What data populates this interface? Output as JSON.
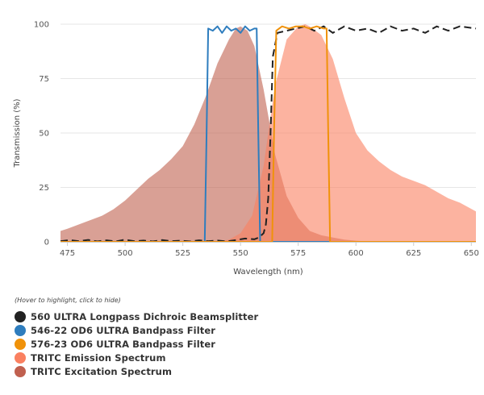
{
  "chart_data": {
    "type": "area",
    "xlabel": "Wavelength (nm)",
    "ylabel": "Transmission (%)",
    "xlim": [
      472,
      652
    ],
    "ylim": [
      0,
      100
    ],
    "x_ticks": [
      475,
      500,
      525,
      550,
      575,
      600,
      625,
      650
    ],
    "y_ticks": [
      0,
      25,
      50,
      75,
      100
    ],
    "grid": "horizontal",
    "legend_hint": "(Hover to highlight, click to hide)",
    "series": [
      {
        "name": "TRITC Excitation Spectrum",
        "style": "area",
        "color": "#c0604f",
        "x": [
          472,
          475,
          480,
          485,
          490,
          495,
          500,
          505,
          510,
          515,
          520,
          525,
          530,
          535,
          540,
          545,
          548,
          550,
          553,
          556,
          560,
          565,
          570,
          575,
          580,
          585,
          590,
          595,
          600,
          605,
          610
        ],
        "y": [
          5,
          6,
          8,
          10,
          12,
          15,
          19,
          24,
          29,
          33,
          38,
          44,
          54,
          67,
          82,
          93,
          98,
          99,
          97,
          90,
          70,
          40,
          21,
          11,
          5,
          3,
          2,
          1,
          0.5,
          0.2,
          0
        ]
      },
      {
        "name": "TRITC Emission Spectrum",
        "style": "area",
        "color": "#fa8060",
        "x": [
          540,
          545,
          550,
          555,
          560,
          565,
          570,
          575,
          578,
          580,
          585,
          590,
          595,
          600,
          605,
          610,
          615,
          620,
          625,
          630,
          635,
          640,
          645,
          652
        ],
        "y": [
          0,
          1,
          4,
          12,
          35,
          72,
          93,
          99,
          100,
          99,
          95,
          84,
          66,
          50,
          42,
          37,
          33,
          30,
          28,
          26,
          23,
          20,
          18,
          14
        ]
      },
      {
        "name": "560 ULTRA Longpass Dichroic Beamsplitter",
        "style": "dashed-line",
        "color": "#222222",
        "x": [
          472,
          476,
          480,
          484,
          488,
          492,
          496,
          500,
          504,
          508,
          512,
          516,
          520,
          524,
          528,
          532,
          536,
          540,
          544,
          548,
          552,
          556,
          558,
          560,
          561,
          562,
          563,
          564,
          566,
          570,
          574,
          578,
          582,
          586,
          590,
          595,
          600,
          605,
          610,
          615,
          620,
          625,
          630,
          635,
          640,
          645,
          652
        ],
        "y": [
          0.3,
          0.8,
          0.3,
          0.9,
          0.2,
          0.7,
          0.2,
          1.0,
          0.3,
          0.6,
          0.2,
          0.8,
          0.3,
          0.5,
          0.2,
          0.7,
          0.3,
          0.6,
          0.2,
          0.8,
          1.5,
          1.2,
          2,
          4,
          8,
          20,
          50,
          85,
          96,
          97,
          98,
          99,
          97,
          99,
          96,
          99,
          97,
          98,
          96,
          99,
          97,
          98,
          96,
          99,
          97,
          99,
          98
        ]
      },
      {
        "name": "546-22 OD6 ULTRA Bandpass Filter",
        "style": "line",
        "color": "#2e7dbe",
        "x": [
          472,
          534.5,
          535.3,
          536,
          538,
          540,
          542,
          544,
          546,
          548,
          550,
          552,
          554,
          556,
          557,
          557.7,
          558.5,
          652
        ],
        "y": [
          0,
          0,
          50,
          98,
          97,
          99,
          96,
          99,
          97,
          98,
          96,
          99,
          97,
          98,
          98,
          50,
          0,
          0
        ]
      },
      {
        "name": "576-23 OD6 ULTRA Bandpass Filter",
        "style": "line",
        "color": "#f0920a",
        "x": [
          472,
          563.7,
          564.5,
          565.5,
          568,
          571,
          574,
          577,
          580,
          583,
          586,
          587.3,
          588,
          588.8,
          652
        ],
        "y": [
          0,
          0,
          50,
          97,
          99,
          98,
          99,
          99,
          98,
          99,
          98,
          98,
          50,
          0,
          0
        ]
      }
    ],
    "legend_order": [
      "560 ULTRA Longpass Dichroic Beamsplitter",
      "546-22 OD6 ULTRA Bandpass Filter",
      "576-23 OD6 ULTRA Bandpass Filter",
      "TRITC Emission Spectrum",
      "TRITC Excitation Spectrum"
    ]
  }
}
